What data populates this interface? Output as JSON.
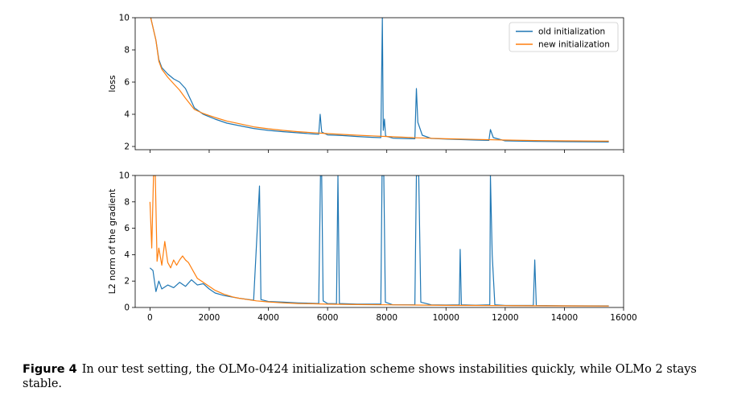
{
  "chart_data": [
    {
      "type": "line",
      "panel": "top",
      "ylabel": "loss",
      "xlim": [
        -500,
        16000
      ],
      "ylim": [
        1.8,
        10
      ],
      "yticks": [
        2,
        4,
        6,
        8,
        10
      ],
      "legend_position": "top-right",
      "series": [
        {
          "name": "old initialization",
          "color": "#1f77b4",
          "points": [
            [
              0,
              10.2
            ],
            [
              200,
              8.6
            ],
            [
              300,
              7.4
            ],
            [
              400,
              6.9
            ],
            [
              600,
              6.5
            ],
            [
              800,
              6.2
            ],
            [
              1000,
              6.0
            ],
            [
              1200,
              5.6
            ],
            [
              1500,
              4.4
            ],
            [
              1800,
              4.0
            ],
            [
              2200,
              3.7
            ],
            [
              2600,
              3.45
            ],
            [
              3000,
              3.3
            ],
            [
              3500,
              3.12
            ],
            [
              4000,
              3.0
            ],
            [
              4500,
              2.92
            ],
            [
              5000,
              2.85
            ],
            [
              5500,
              2.78
            ],
            [
              5700,
              2.76
            ],
            [
              5750,
              4.0
            ],
            [
              5800,
              2.9
            ],
            [
              6000,
              2.72
            ],
            [
              6500,
              2.68
            ],
            [
              7000,
              2.62
            ],
            [
              7500,
              2.57
            ],
            [
              7800,
              2.55
            ],
            [
              7850,
              10.0
            ],
            [
              7880,
              3.0
            ],
            [
              7920,
              3.7
            ],
            [
              7960,
              2.65
            ],
            [
              8200,
              2.52
            ],
            [
              8500,
              2.5
            ],
            [
              8950,
              2.48
            ],
            [
              9000,
              5.6
            ],
            [
              9050,
              3.5
            ],
            [
              9200,
              2.7
            ],
            [
              9500,
              2.5
            ],
            [
              10000,
              2.46
            ],
            [
              10500,
              2.43
            ],
            [
              11000,
              2.4
            ],
            [
              11450,
              2.38
            ],
            [
              11500,
              3.05
            ],
            [
              11600,
              2.55
            ],
            [
              12000,
              2.35
            ],
            [
              13000,
              2.32
            ],
            [
              14000,
              2.3
            ],
            [
              15500,
              2.28
            ]
          ]
        },
        {
          "name": "new initialization",
          "color": "#ff7f0e",
          "points": [
            [
              0,
              10.2
            ],
            [
              200,
              8.6
            ],
            [
              300,
              7.3
            ],
            [
              400,
              6.8
            ],
            [
              600,
              6.3
            ],
            [
              800,
              5.9
            ],
            [
              1000,
              5.5
            ],
            [
              1200,
              5.0
            ],
            [
              1500,
              4.3
            ],
            [
              1800,
              4.05
            ],
            [
              2200,
              3.8
            ],
            [
              2600,
              3.58
            ],
            [
              3000,
              3.42
            ],
            [
              3500,
              3.22
            ],
            [
              4000,
              3.1
            ],
            [
              4500,
              3.0
            ],
            [
              5000,
              2.92
            ],
            [
              5500,
              2.86
            ],
            [
              6000,
              2.8
            ],
            [
              6500,
              2.75
            ],
            [
              7000,
              2.7
            ],
            [
              7500,
              2.66
            ],
            [
              8000,
              2.62
            ],
            [
              8500,
              2.58
            ],
            [
              9000,
              2.54
            ],
            [
              9500,
              2.51
            ],
            [
              10000,
              2.48
            ],
            [
              11000,
              2.44
            ],
            [
              12000,
              2.4
            ],
            [
              13000,
              2.37
            ],
            [
              14000,
              2.35
            ],
            [
              15500,
              2.33
            ]
          ]
        }
      ]
    },
    {
      "type": "line",
      "panel": "bottom",
      "ylabel": "L2 norm of the gradient",
      "xlim": [
        -500,
        16000
      ],
      "ylim": [
        0,
        10
      ],
      "yticks": [
        0,
        2,
        4,
        6,
        8,
        10
      ],
      "xticks": [
        0,
        2000,
        4000,
        6000,
        8000,
        10000,
        12000,
        14000,
        16000
      ],
      "series": [
        {
          "name": "old initialization",
          "color": "#1f77b4",
          "points": [
            [
              0,
              3.0
            ],
            [
              100,
              2.8
            ],
            [
              200,
              1.2
            ],
            [
              300,
              2.0
            ],
            [
              400,
              1.4
            ],
            [
              600,
              1.7
            ],
            [
              800,
              1.5
            ],
            [
              1000,
              1.9
            ],
            [
              1200,
              1.6
            ],
            [
              1400,
              2.1
            ],
            [
              1600,
              1.7
            ],
            [
              1800,
              1.8
            ],
            [
              2000,
              1.4
            ],
            [
              2200,
              1.1
            ],
            [
              2500,
              0.9
            ],
            [
              3000,
              0.7
            ],
            [
              3500,
              0.55
            ],
            [
              3700,
              9.2
            ],
            [
              3750,
              0.6
            ],
            [
              4000,
              0.45
            ],
            [
              4500,
              0.4
            ],
            [
              5000,
              0.35
            ],
            [
              5500,
              0.32
            ],
            [
              5700,
              0.3
            ],
            [
              5760,
              10.0
            ],
            [
              5800,
              10.0
            ],
            [
              5850,
              0.5
            ],
            [
              6000,
              0.3
            ],
            [
              6300,
              0.28
            ],
            [
              6350,
              10.0
            ],
            [
              6400,
              0.3
            ],
            [
              7000,
              0.25
            ],
            [
              7800,
              0.25
            ],
            [
              7840,
              10.0
            ],
            [
              7900,
              10.0
            ],
            [
              7950,
              0.4
            ],
            [
              8200,
              0.2
            ],
            [
              8500,
              0.2
            ],
            [
              8950,
              0.2
            ],
            [
              9000,
              10.0
            ],
            [
              9080,
              10.0
            ],
            [
              9150,
              0.4
            ],
            [
              9500,
              0.2
            ],
            [
              10000,
              0.18
            ],
            [
              10450,
              0.2
            ],
            [
              10480,
              4.4
            ],
            [
              10520,
              0.2
            ],
            [
              11000,
              0.17
            ],
            [
              11480,
              0.2
            ],
            [
              11500,
              10.0
            ],
            [
              11560,
              4.0
            ],
            [
              11650,
              0.2
            ],
            [
              12000,
              0.15
            ],
            [
              12950,
              0.15
            ],
            [
              13000,
              3.6
            ],
            [
              13050,
              0.15
            ],
            [
              14000,
              0.13
            ],
            [
              15500,
              0.12
            ]
          ]
        },
        {
          "name": "new initialization",
          "color": "#ff7f0e",
          "points": [
            [
              0,
              8.0
            ],
            [
              60,
              4.5
            ],
            [
              120,
              10.0
            ],
            [
              180,
              10.0
            ],
            [
              240,
              3.5
            ],
            [
              300,
              4.5
            ],
            [
              400,
              3.2
            ],
            [
              500,
              5.0
            ],
            [
              600,
              3.4
            ],
            [
              700,
              3.0
            ],
            [
              800,
              3.6
            ],
            [
              900,
              3.2
            ],
            [
              1000,
              3.6
            ],
            [
              1100,
              3.9
            ],
            [
              1200,
              3.6
            ],
            [
              1300,
              3.4
            ],
            [
              1400,
              3.0
            ],
            [
              1500,
              2.6
            ],
            [
              1600,
              2.2
            ],
            [
              1800,
              1.9
            ],
            [
              2000,
              1.6
            ],
            [
              2200,
              1.3
            ],
            [
              2500,
              1.0
            ],
            [
              2800,
              0.8
            ],
            [
              3000,
              0.7
            ],
            [
              3300,
              0.6
            ],
            [
              3600,
              0.5
            ],
            [
              4000,
              0.42
            ],
            [
              4500,
              0.35
            ],
            [
              5000,
              0.3
            ],
            [
              5500,
              0.28
            ],
            [
              6000,
              0.25
            ],
            [
              7000,
              0.22
            ],
            [
              8000,
              0.2
            ],
            [
              9000,
              0.18
            ],
            [
              10000,
              0.16
            ],
            [
              11000,
              0.15
            ],
            [
              12000,
              0.14
            ],
            [
              13000,
              0.13
            ],
            [
              14000,
              0.12
            ],
            [
              15500,
              0.11
            ]
          ]
        }
      ]
    }
  ],
  "legend": [
    "old initialization",
    "new initialization"
  ],
  "caption": {
    "label": "Figure 4",
    "text": "In our test setting, the OLMo-0424 initialization scheme shows instabilities quickly, while OLMo 2 stays stable."
  }
}
